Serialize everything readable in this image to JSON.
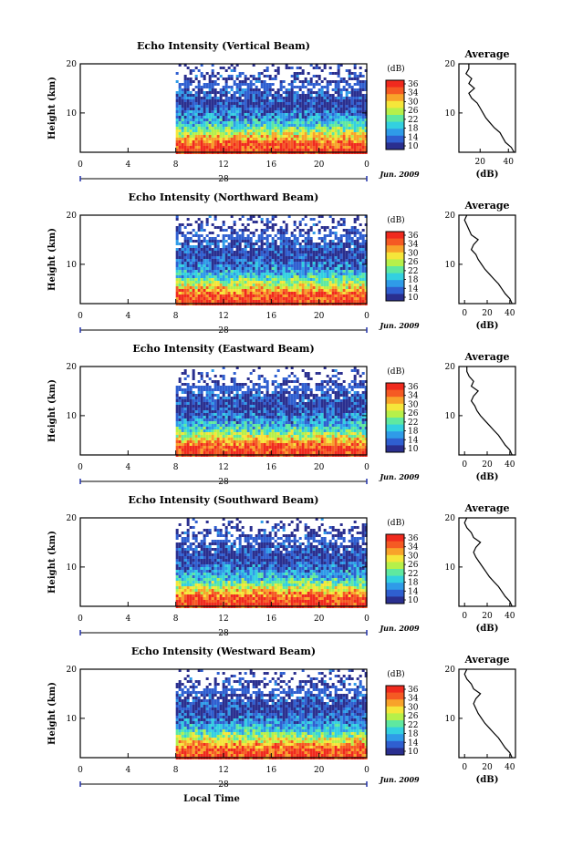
{
  "figure": {
    "xlabel_bottom": "Local Time",
    "colorbar_unit": "(dB)",
    "avg_title": "Average",
    "avg_xlabel": "(dB)",
    "height_label": "Height (km)",
    "date_label": "Jun. 2009"
  },
  "colorbar": {
    "ticks": [
      "36",
      "34",
      "30",
      "26",
      "22",
      "18",
      "14",
      "10"
    ],
    "colors": [
      "#2a2f8f",
      "#2f5fd0",
      "#2f9be8",
      "#33d0e0",
      "#5fe8a0",
      "#b6f04a",
      "#f5e63a",
      "#f8a32a",
      "#f55a23",
      "#f02a1e"
    ]
  },
  "chart_data": [
    {
      "type": "heatmap",
      "title": "Echo Intensity (Vertical Beam)",
      "day_label": "28",
      "x_ticks": [
        "0",
        "4",
        "8",
        "12",
        "16",
        "20",
        "0"
      ],
      "y_ticks": [
        "20",
        "10"
      ],
      "xlim": [
        0,
        24
      ],
      "ylim": [
        2,
        20
      ],
      "data_start_hour": 8,
      "values": {
        "height_km": [
          2,
          4,
          6,
          8,
          10,
          12,
          14,
          16,
          18,
          20
        ],
        "mean_db": [
          36,
          34,
          26,
          18,
          14,
          10,
          12,
          10,
          10,
          10
        ]
      },
      "avg_profile": {
        "x_ticks": [
          "20",
          "40"
        ],
        "xlim": [
          5,
          45
        ],
        "y_ticks": [
          "20",
          "10"
        ],
        "ylim": [
          2,
          20
        ],
        "height_km": [
          2,
          3,
          4,
          5,
          6,
          7,
          8,
          9,
          10,
          11,
          12,
          13,
          14,
          15,
          16,
          17,
          18,
          19,
          20
        ],
        "db": [
          44,
          42,
          38,
          36,
          34,
          30,
          27,
          24,
          22,
          20,
          18,
          14,
          12,
          16,
          12,
          14,
          10,
          12,
          12
        ]
      }
    },
    {
      "type": "heatmap",
      "title": "Echo Intensity (Northward Beam)",
      "day_label": "28",
      "x_ticks": [
        "0",
        "4",
        "8",
        "12",
        "16",
        "20",
        "0"
      ],
      "y_ticks": [
        "20",
        "10"
      ],
      "xlim": [
        0,
        24
      ],
      "ylim": [
        2,
        20
      ],
      "data_start_hour": 8,
      "values": {
        "height_km": [
          2,
          4,
          6,
          8,
          10,
          12,
          14,
          16,
          18,
          20
        ],
        "mean_db": [
          36,
          34,
          26,
          18,
          14,
          10,
          12,
          10,
          10,
          10
        ]
      },
      "avg_profile": {
        "x_ticks": [
          "0",
          "20",
          "40"
        ],
        "xlim": [
          -5,
          45
        ],
        "y_ticks": [
          "20",
          "10"
        ],
        "ylim": [
          2,
          20
        ],
        "height_km": [
          2,
          3,
          4,
          5,
          6,
          7,
          8,
          9,
          10,
          11,
          12,
          13,
          14,
          15,
          16,
          17,
          18,
          19,
          20
        ],
        "db": [
          42,
          40,
          36,
          33,
          30,
          26,
          22,
          18,
          15,
          12,
          10,
          6,
          8,
          12,
          6,
          4,
          2,
          0,
          2
        ]
      }
    },
    {
      "type": "heatmap",
      "title": "Echo Intensity (Eastward Beam)",
      "day_label": "28",
      "x_ticks": [
        "0",
        "4",
        "8",
        "12",
        "16",
        "20",
        "0"
      ],
      "y_ticks": [
        "20",
        "10"
      ],
      "xlim": [
        0,
        24
      ],
      "ylim": [
        2,
        20
      ],
      "data_start_hour": 8,
      "values": {
        "height_km": [
          2,
          4,
          6,
          8,
          10,
          12,
          14,
          16,
          18,
          20
        ],
        "mean_db": [
          36,
          34,
          26,
          18,
          14,
          10,
          12,
          10,
          10,
          10
        ]
      },
      "avg_profile": {
        "x_ticks": [
          "0",
          "20",
          "40"
        ],
        "xlim": [
          -5,
          45
        ],
        "y_ticks": [
          "20",
          "10"
        ],
        "ylim": [
          2,
          20
        ],
        "height_km": [
          2,
          3,
          4,
          5,
          6,
          7,
          8,
          9,
          10,
          11,
          12,
          13,
          14,
          15,
          16,
          17,
          18,
          19,
          20
        ],
        "db": [
          42,
          40,
          36,
          33,
          30,
          26,
          22,
          18,
          14,
          11,
          9,
          6,
          8,
          12,
          6,
          8,
          4,
          2,
          2
        ]
      }
    },
    {
      "type": "heatmap",
      "title": "Echo Intensity (Southward Beam)",
      "day_label": "28",
      "x_ticks": [
        "0",
        "4",
        "8",
        "12",
        "16",
        "20",
        "0"
      ],
      "y_ticks": [
        "20",
        "10"
      ],
      "xlim": [
        0,
        24
      ],
      "ylim": [
        2,
        20
      ],
      "data_start_hour": 8,
      "values": {
        "height_km": [
          2,
          4,
          6,
          8,
          10,
          12,
          14,
          16,
          18,
          20
        ],
        "mean_db": [
          36,
          34,
          26,
          18,
          14,
          10,
          12,
          10,
          10,
          10
        ]
      },
      "avg_profile": {
        "x_ticks": [
          "0",
          "20",
          "40"
        ],
        "xlim": [
          -5,
          45
        ],
        "y_ticks": [
          "20",
          "10"
        ],
        "ylim": [
          2,
          20
        ],
        "height_km": [
          2,
          3,
          4,
          5,
          6,
          7,
          8,
          9,
          10,
          11,
          12,
          13,
          14,
          15,
          16,
          17,
          18,
          19,
          20
        ],
        "db": [
          42,
          40,
          36,
          33,
          30,
          26,
          22,
          19,
          16,
          13,
          10,
          8,
          10,
          14,
          8,
          6,
          2,
          0,
          2
        ]
      }
    },
    {
      "type": "heatmap",
      "title": "Echo Intensity (Westward Beam)",
      "day_label": "28",
      "x_ticks": [
        "0",
        "4",
        "8",
        "12",
        "16",
        "20",
        "0"
      ],
      "y_ticks": [
        "20",
        "10"
      ],
      "xlim": [
        0,
        24
      ],
      "ylim": [
        2,
        20
      ],
      "data_start_hour": 8,
      "values": {
        "height_km": [
          2,
          4,
          6,
          8,
          10,
          12,
          14,
          16,
          18,
          20
        ],
        "mean_db": [
          36,
          34,
          26,
          18,
          14,
          10,
          12,
          10,
          10,
          10
        ]
      },
      "avg_profile": {
        "x_ticks": [
          "0",
          "20",
          "40"
        ],
        "xlim": [
          -5,
          45
        ],
        "y_ticks": [
          "20",
          "10"
        ],
        "ylim": [
          2,
          20
        ],
        "height_km": [
          2,
          3,
          4,
          5,
          6,
          7,
          8,
          9,
          10,
          11,
          12,
          13,
          14,
          15,
          16,
          17,
          18,
          19,
          20
        ],
        "db": [
          42,
          40,
          36,
          33,
          30,
          26,
          22,
          18,
          15,
          12,
          10,
          8,
          10,
          14,
          8,
          6,
          2,
          0,
          2
        ]
      }
    }
  ]
}
